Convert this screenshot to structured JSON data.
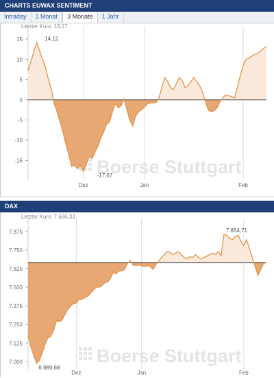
{
  "euwax": {
    "title": "CHARTS EUWAX SENTIMENT",
    "tabs": [
      {
        "label": "Intraday",
        "active": false
      },
      {
        "label": "1 Monat",
        "active": false
      },
      {
        "label": "3 Monate",
        "active": true
      },
      {
        "label": "1 Jahr",
        "active": false
      }
    ]
  },
  "dax": {
    "title": "DAX"
  },
  "watermark": "Boerse Stuttgart",
  "colors": {
    "header": "#1f3f79",
    "line": "#e0944a",
    "fill_below": "#e8a874",
    "fill_above": "#fbeadb",
    "grid": "#dddddd"
  },
  "chart_data": [
    {
      "type": "area",
      "last_label": "Letzter Kurs: 13,17",
      "baseline": 0,
      "yticks": [
        15,
        10,
        5,
        0,
        -5,
        -10,
        -15
      ],
      "ytick_labels": [
        "15",
        "10",
        "5",
        "0",
        "-5",
        "-10",
        "-15"
      ],
      "ylim": [
        -19.5,
        16.5
      ],
      "x_month_ticks": [
        {
          "label": "Dez",
          "i": 19
        },
        {
          "label": "Jan",
          "i": 40
        },
        {
          "label": "Feb",
          "i": 74
        }
      ],
      "n": 83,
      "annotations": [
        {
          "text": "14,12",
          "i": 5,
          "y": 14.12
        },
        {
          "text": "-17,67",
          "i": 23,
          "y": -17.67
        }
      ],
      "values": [
        7.2,
        9.5,
        12.0,
        14.12,
        12.0,
        10.0,
        8.0,
        5.0,
        2.5,
        -1.0,
        -3.0,
        -5.5,
        -8.0,
        -11.0,
        -13.5,
        -16.5,
        -16.2,
        -17.0,
        -16.3,
        -17.67,
        -16.0,
        -14.0,
        -14.5,
        -13.0,
        -11.5,
        -9.5,
        -8.0,
        -6.0,
        -5.5,
        -3.0,
        -1.0,
        -2.0,
        -1.5,
        0.2,
        -2.5,
        -5.0,
        -6.5,
        -4.0,
        -3.0,
        -2.5,
        -1.8,
        -1.0,
        -0.8,
        -0.8,
        -0.7,
        0.5,
        3.0,
        5.5,
        4.5,
        3.0,
        2.5,
        4.0,
        5.5,
        4.8,
        3.0,
        3.5,
        4.5,
        5.5,
        4.5,
        3.5,
        2.0,
        -0.5,
        -2.5,
        -3.0,
        -2.7,
        -2.0,
        -0.5,
        0.5,
        1.2,
        1.0,
        0.8,
        0.5,
        3.0,
        6.0,
        8.5,
        10.0,
        10.3,
        10.8,
        11.2,
        11.5,
        12.0,
        12.7,
        13.17
      ]
    },
    {
      "type": "area",
      "last_label": "Letzter Kurs: 7.666,33",
      "baseline": 7666.33,
      "yticks": [
        7875,
        7750,
        7625,
        7500,
        7375,
        7250,
        7125,
        7000
      ],
      "ytick_labels": [
        "7.875",
        "7.750",
        "7.625",
        "7.500",
        "7.375",
        "7.250",
        "7.125",
        "7.000"
      ],
      "ylim": [
        6960,
        7920
      ],
      "x_month_ticks": [
        {
          "label": "Dez",
          "i": 17
        },
        {
          "label": "Jan",
          "i": 40
        },
        {
          "label": "Feb",
          "i": 76
        }
      ],
      "n": 85,
      "annotations": [
        {
          "text": "6.989,68",
          "i": 3,
          "y": 6989.68
        },
        {
          "text": "7.854,71",
          "i": 69,
          "y": 7854.71
        }
      ],
      "values": [
        7175,
        7100,
        7040,
        6989.68,
        7010,
        7060,
        7120,
        7160,
        7170,
        7210,
        7275,
        7270,
        7280,
        7320,
        7350,
        7375,
        7390,
        7395,
        7420,
        7420,
        7430,
        7440,
        7460,
        7480,
        7500,
        7500,
        7510,
        7530,
        7535,
        7560,
        7600,
        7590,
        7610,
        7610,
        7620,
        7660,
        7680,
        7650,
        7645,
        7650,
        7645,
        7640,
        7645,
        7640,
        7620,
        7650,
        7675,
        7700,
        7720,
        7740,
        7735,
        7720,
        7730,
        7740,
        7720,
        7700,
        7690,
        7705,
        7700,
        7720,
        7700,
        7690,
        7700,
        7710,
        7720,
        7730,
        7720,
        7740,
        7710,
        7854.71,
        7850,
        7830,
        7820,
        7840,
        7850,
        7810,
        7780,
        7820,
        7760,
        7700,
        7640,
        7580,
        7620,
        7660,
        7666.33
      ]
    }
  ]
}
